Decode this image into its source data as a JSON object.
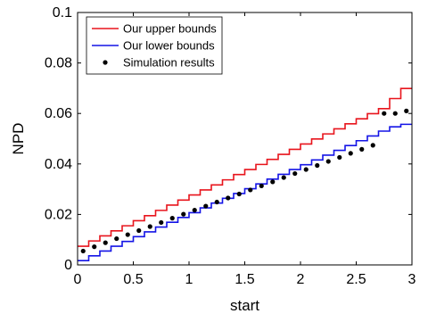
{
  "chart_data": {
    "type": "line",
    "xlabel": "start",
    "ylabel": "NPD",
    "xlim": [
      0,
      3
    ],
    "ylim": [
      0,
      0.1
    ],
    "xticks": [
      0,
      0.5,
      1,
      1.5,
      2,
      2.5,
      3
    ],
    "xtick_labels": [
      "0",
      "0.5",
      "1",
      "1.5",
      "2",
      "2.5",
      "3"
    ],
    "yticks": [
      0,
      0.02,
      0.04,
      0.06,
      0.08,
      0.1
    ],
    "ytick_labels": [
      "0",
      "0.02",
      "0.04",
      "0.06",
      "0.08",
      "0.1"
    ],
    "grid": false,
    "legend_position": "top-left",
    "series": [
      {
        "name": "Our upper bounds",
        "style": "step",
        "color": "#e8141c",
        "x": [
          0,
          0.1,
          0.2,
          0.3,
          0.4,
          0.5,
          0.6,
          0.7,
          0.8,
          0.9,
          1.0,
          1.1,
          1.2,
          1.3,
          1.4,
          1.5,
          1.6,
          1.7,
          1.8,
          1.9,
          2.0,
          2.1,
          2.2,
          2.3,
          2.4,
          2.5,
          2.6,
          2.7,
          2.8,
          2.9
        ],
        "y": [
          0.0074,
          0.0095,
          0.0115,
          0.0135,
          0.0155,
          0.0175,
          0.0195,
          0.0216,
          0.0237,
          0.0257,
          0.0277,
          0.0297,
          0.0317,
          0.0337,
          0.0358,
          0.0378,
          0.0398,
          0.0418,
          0.0438,
          0.0458,
          0.0479,
          0.0499,
          0.0519,
          0.0539,
          0.0559,
          0.0579,
          0.0599,
          0.0619,
          0.0659,
          0.0699
        ]
      },
      {
        "name": "Our lower bounds",
        "style": "step",
        "color": "#1414e6",
        "x": [
          0,
          0.1,
          0.2,
          0.3,
          0.4,
          0.5,
          0.6,
          0.7,
          0.8,
          0.9,
          1.0,
          1.1,
          1.2,
          1.3,
          1.4,
          1.5,
          1.6,
          1.7,
          1.8,
          1.9,
          2.0,
          2.1,
          2.2,
          2.3,
          2.4,
          2.5,
          2.6,
          2.7,
          2.8,
          2.9
        ],
        "y": [
          0.0017,
          0.0036,
          0.0055,
          0.0074,
          0.0093,
          0.0112,
          0.0131,
          0.015,
          0.0169,
          0.0188,
          0.0207,
          0.0226,
          0.0245,
          0.0264,
          0.0283,
          0.0302,
          0.0321,
          0.034,
          0.0359,
          0.0378,
          0.0397,
          0.0416,
          0.0435,
          0.0454,
          0.0473,
          0.0492,
          0.0511,
          0.053,
          0.0547,
          0.0557
        ]
      },
      {
        "name": "Simulation results",
        "style": "scatter",
        "color": "#000000",
        "x": [
          0.05,
          0.15,
          0.25,
          0.35,
          0.45,
          0.55,
          0.65,
          0.75,
          0.85,
          0.95,
          1.05,
          1.15,
          1.25,
          1.35,
          1.45,
          1.55,
          1.65,
          1.75,
          1.85,
          1.95,
          2.05,
          2.15,
          2.25,
          2.35,
          2.45,
          2.55,
          2.65,
          2.75,
          2.85,
          2.95
        ],
        "y": [
          0.0055,
          0.0072,
          0.0088,
          0.0104,
          0.012,
          0.0136,
          0.0152,
          0.0168,
          0.0185,
          0.0201,
          0.0217,
          0.0233,
          0.0249,
          0.0265,
          0.0281,
          0.0297,
          0.0313,
          0.0329,
          0.0346,
          0.0362,
          0.0378,
          0.0394,
          0.041,
          0.0426,
          0.0442,
          0.0458,
          0.0474,
          0.06,
          0.06,
          0.061
        ]
      }
    ]
  }
}
